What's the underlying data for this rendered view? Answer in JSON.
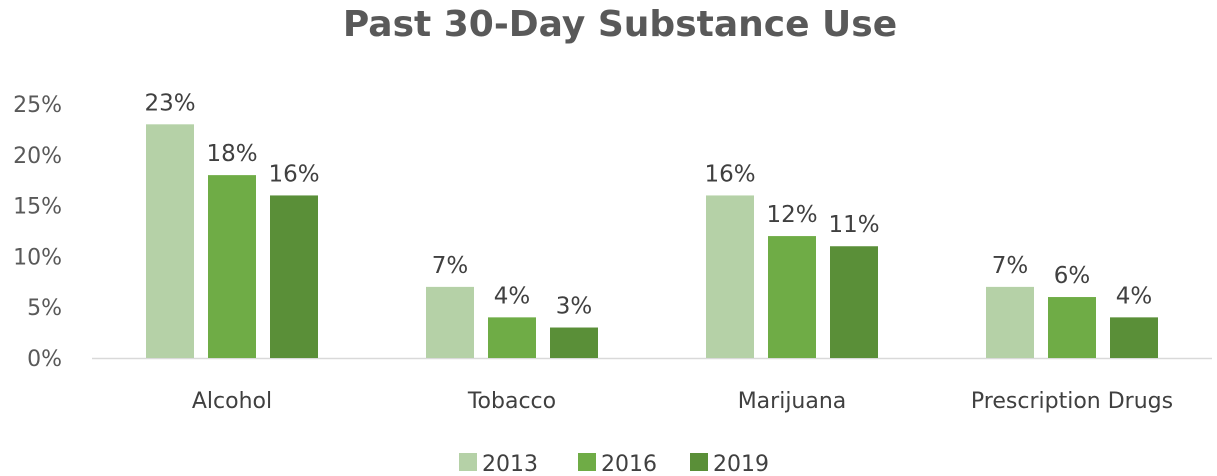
{
  "chart_data": {
    "type": "bar",
    "title": "Past 30-Day Substance Use",
    "categories": [
      "Alcohol",
      "Tobacco",
      "Marijuana",
      "Prescription Drugs"
    ],
    "series": [
      {
        "name": "2013",
        "color": "#b5d1a7",
        "values": [
          23,
          7,
          16,
          7
        ],
        "labels": [
          "23%",
          "7%",
          "16%",
          "7%"
        ]
      },
      {
        "name": "2016",
        "color": "#6fac46",
        "values": [
          18,
          4,
          12,
          6
        ],
        "labels": [
          "18%",
          "4%",
          "12%",
          "6%"
        ]
      },
      {
        "name": "2019",
        "color": "#5a8f38",
        "values": [
          16,
          3,
          11,
          4
        ],
        "labels": [
          "16%",
          "3%",
          "11%",
          "4%"
        ]
      }
    ],
    "ylim": [
      0,
      25
    ],
    "yticks": [
      0,
      5,
      10,
      15,
      20,
      25
    ],
    "ytick_labels": [
      "0%",
      "5%",
      "10%",
      "15%",
      "20%",
      "25%"
    ],
    "xlabel": "",
    "ylabel": "",
    "grid": false,
    "legend_position": "bottom",
    "axis_color": "#d9d9d9"
  }
}
